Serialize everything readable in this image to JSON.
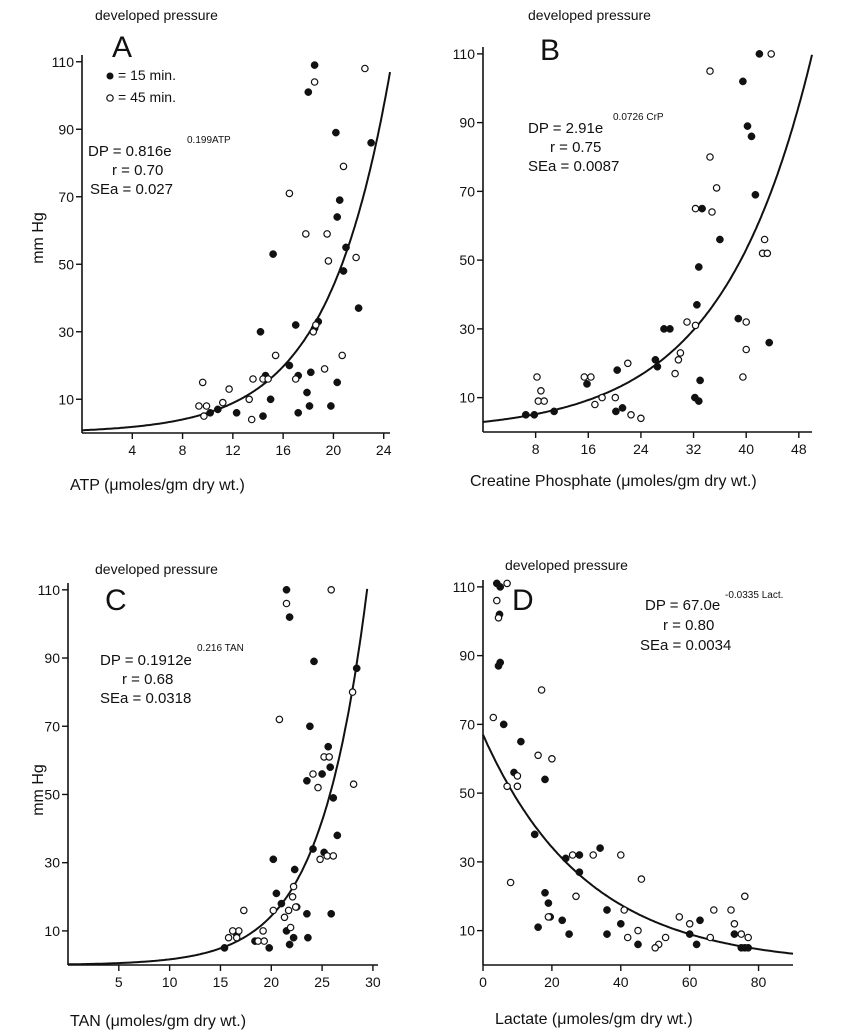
{
  "chart_data": [
    {
      "type": "scatter",
      "panel": "A",
      "title": "developed pressure",
      "xlabel": "ATP (μmoles/gm dry wt.)",
      "ylabel": "mm Hg",
      "xlim": [
        0,
        24.5
      ],
      "ylim": [
        0,
        112
      ],
      "x_ticks": [
        4,
        8,
        12,
        16,
        20,
        24
      ],
      "y_ticks": [
        10,
        30,
        50,
        70,
        90,
        110
      ],
      "legend": [
        {
          "marker": "filled",
          "label": "= 15 min."
        },
        {
          "marker": "open",
          "label": "= 45 min."
        }
      ],
      "equation": {
        "lhs": "DP = 0.816e",
        "exponent": "0.199ATP",
        "r": "r = 0.70",
        "se": "SEa = 0.027"
      },
      "fit": {
        "a": 0.816,
        "b": 0.199
      },
      "series": [
        {
          "name": "15 min.",
          "marker": "filled",
          "points": [
            [
              18.5,
              109
            ],
            [
              18,
              101
            ],
            [
              20.2,
              89
            ],
            [
              23,
              86
            ],
            [
              20.5,
              69
            ],
            [
              20.3,
              64
            ],
            [
              21,
              55
            ],
            [
              15.2,
              53
            ],
            [
              20.8,
              48
            ],
            [
              22,
              37
            ],
            [
              18.8,
              33
            ],
            [
              14.2,
              30
            ],
            [
              17,
              32
            ],
            [
              18.5,
              31
            ],
            [
              16.5,
              20
            ],
            [
              17.2,
              17
            ],
            [
              18.2,
              18
            ],
            [
              14.6,
              17
            ],
            [
              17.9,
              12
            ],
            [
              15,
              10
            ],
            [
              20.3,
              15
            ],
            [
              12.3,
              6
            ],
            [
              10.2,
              6
            ],
            [
              14.4,
              5
            ],
            [
              17.2,
              6
            ],
            [
              18.1,
              8
            ],
            [
              19.8,
              8
            ],
            [
              10.8,
              7
            ]
          ]
        },
        {
          "name": "45 min.",
          "marker": "open",
          "points": [
            [
              18.5,
              104
            ],
            [
              22.5,
              108
            ],
            [
              20.8,
              79
            ],
            [
              16.5,
              71
            ],
            [
              17.8,
              59
            ],
            [
              19.5,
              59
            ],
            [
              21.8,
              52
            ],
            [
              19.6,
              51
            ],
            [
              18.6,
              32
            ],
            [
              18.4,
              30
            ],
            [
              20.7,
              23
            ],
            [
              15.4,
              23
            ],
            [
              19.3,
              19
            ],
            [
              17,
              16
            ],
            [
              13.6,
              16
            ],
            [
              14.4,
              16
            ],
            [
              14.8,
              16
            ],
            [
              11.7,
              13
            ],
            [
              13.3,
              10
            ],
            [
              9.6,
              15
            ],
            [
              9.3,
              8
            ],
            [
              9.9,
              8
            ],
            [
              11.2,
              9
            ],
            [
              9.7,
              5
            ],
            [
              13.5,
              4
            ]
          ]
        }
      ]
    },
    {
      "type": "scatter",
      "panel": "B",
      "title": "developed pressure",
      "xlabel": "Creatine Phosphate (μmoles/gm dry wt.)",
      "ylabel": "",
      "xlim": [
        0,
        50
      ],
      "ylim": [
        0,
        112
      ],
      "x_ticks": [
        8,
        16,
        24,
        32,
        40,
        48
      ],
      "y_ticks": [
        10,
        30,
        50,
        70,
        90,
        110
      ],
      "equation": {
        "lhs": "DP = 2.91e",
        "exponent": "0.0726 CrP",
        "r": "r = 0.75",
        "se": "SEa = 0.0087"
      },
      "fit": {
        "a": 2.91,
        "b": 0.0726
      },
      "series": [
        {
          "name": "15 min.",
          "marker": "filled",
          "points": [
            [
              42,
              110
            ],
            [
              39.5,
              102
            ],
            [
              40.2,
              89
            ],
            [
              40.8,
              86
            ],
            [
              41.4,
              69
            ],
            [
              33.3,
              65
            ],
            [
              36,
              56
            ],
            [
              32.8,
              48
            ],
            [
              32.5,
              37
            ],
            [
              27.5,
              30
            ],
            [
              28.4,
              30
            ],
            [
              38.8,
              33
            ],
            [
              43.5,
              26
            ],
            [
              26.2,
              21
            ],
            [
              26.5,
              19
            ],
            [
              15.8,
              14
            ],
            [
              20.4,
              18
            ],
            [
              33,
              15
            ],
            [
              32.2,
              10
            ],
            [
              32.8,
              9
            ],
            [
              20.2,
              6
            ],
            [
              21.2,
              7
            ],
            [
              6.5,
              5
            ],
            [
              7.8,
              5
            ],
            [
              10.8,
              6
            ]
          ]
        },
        {
          "name": "45 min.",
          "marker": "open",
          "points": [
            [
              43.8,
              110
            ],
            [
              34.5,
              105
            ],
            [
              34.5,
              80
            ],
            [
              35.5,
              71
            ],
            [
              32.3,
              65
            ],
            [
              34.8,
              64
            ],
            [
              31,
              32
            ],
            [
              32.3,
              31
            ],
            [
              40,
              32
            ],
            [
              40,
              24
            ],
            [
              39.5,
              16
            ],
            [
              42.8,
              56
            ],
            [
              42.5,
              52
            ],
            [
              43.2,
              52
            ],
            [
              30,
              23
            ],
            [
              29.2,
              17
            ],
            [
              29.7,
              21
            ],
            [
              8.2,
              16
            ],
            [
              15.4,
              16
            ],
            [
              16.4,
              16
            ],
            [
              22,
              20
            ],
            [
              8.8,
              12
            ],
            [
              8.4,
              9
            ],
            [
              9.3,
              9
            ],
            [
              18.1,
              10
            ],
            [
              20.1,
              10
            ],
            [
              22.5,
              5
            ],
            [
              17,
              8
            ],
            [
              24,
              4
            ]
          ]
        }
      ]
    },
    {
      "type": "scatter",
      "panel": "C",
      "title": "developed pressure",
      "xlabel": "TAN (μmoles/gm dry wt.)",
      "ylabel": "mm Hg",
      "xlim": [
        0,
        30.5
      ],
      "ylim": [
        0,
        112
      ],
      "x_ticks": [
        5,
        10,
        15,
        20,
        25,
        30
      ],
      "y_ticks": [
        10,
        30,
        50,
        70,
        90,
        110
      ],
      "equation": {
        "lhs": "DP = 0.1912e",
        "exponent": "0.216 TAN",
        "r": "r = 0.68",
        "se": "SEa = 0.0318"
      },
      "fit": {
        "a": 0.1912,
        "b": 0.216
      },
      "series": [
        {
          "name": "15 min.",
          "marker": "filled",
          "points": [
            [
              21.5,
              110
            ],
            [
              21.8,
              102
            ],
            [
              24.2,
              89
            ],
            [
              28.4,
              87
            ],
            [
              23.8,
              70
            ],
            [
              25.6,
              64
            ],
            [
              25.8,
              58
            ],
            [
              25,
              56
            ],
            [
              23.5,
              54
            ],
            [
              26.1,
              49
            ],
            [
              26.5,
              38
            ],
            [
              25.2,
              33
            ],
            [
              24.1,
              34
            ],
            [
              20.2,
              31
            ],
            [
              22.3,
              28
            ],
            [
              20.5,
              21
            ],
            [
              21,
              18
            ],
            [
              22.5,
              17
            ],
            [
              23.5,
              15
            ],
            [
              25.9,
              15
            ],
            [
              21.5,
              10
            ],
            [
              22.2,
              8
            ],
            [
              23.6,
              8
            ],
            [
              21.8,
              6
            ],
            [
              18.4,
              7
            ],
            [
              19.8,
              5
            ],
            [
              15.4,
              5
            ],
            [
              16.6,
              9
            ]
          ]
        },
        {
          "name": "45 min.",
          "marker": "open",
          "points": [
            [
              21.5,
              106
            ],
            [
              25.9,
              110
            ],
            [
              28,
              80
            ],
            [
              20.8,
              72
            ],
            [
              28.1,
              53
            ],
            [
              25.2,
              61
            ],
            [
              25.7,
              61
            ],
            [
              24.1,
              56
            ],
            [
              24.6,
              52
            ],
            [
              24.8,
              31
            ],
            [
              25.5,
              32
            ],
            [
              26.1,
              32
            ],
            [
              22.2,
              23
            ],
            [
              20.2,
              16
            ],
            [
              21.3,
              14
            ],
            [
              21.7,
              16
            ],
            [
              22.1,
              20
            ],
            [
              21.9,
              11
            ],
            [
              22.4,
              17
            ],
            [
              17.3,
              16
            ],
            [
              16.8,
              10
            ],
            [
              16.6,
              8
            ],
            [
              19.2,
              10
            ],
            [
              18.7,
              7
            ],
            [
              19.3,
              7
            ],
            [
              15.8,
              8
            ],
            [
              16.2,
              10
            ]
          ]
        }
      ]
    },
    {
      "type": "scatter",
      "panel": "D",
      "title": "developed pressure",
      "xlabel": "Lactate (μmoles/gm dry wt.)",
      "ylabel": "",
      "xlim": [
        0,
        90
      ],
      "ylim": [
        0,
        112
      ],
      "x_ticks": [
        0,
        20,
        40,
        60,
        80
      ],
      "y_ticks": [
        10,
        30,
        50,
        70,
        90,
        110
      ],
      "equation": {
        "lhs": "DP = 67.0e",
        "exponent": "-0.0335 Lact.",
        "r": "r = 0.80",
        "se": "SEa = 0.0034"
      },
      "fit": {
        "a": 67.0,
        "b": -0.0335
      },
      "series": [
        {
          "name": "15 min.",
          "marker": "filled",
          "points": [
            [
              4,
              111
            ],
            [
              5,
              110
            ],
            [
              4.8,
              102
            ],
            [
              5,
              88
            ],
            [
              4.5,
              87
            ],
            [
              6,
              70
            ],
            [
              11,
              65
            ],
            [
              9,
              56
            ],
            [
              18,
              54
            ],
            [
              15,
              38
            ],
            [
              24,
              31
            ],
            [
              28,
              32
            ],
            [
              34,
              34
            ],
            [
              18,
              21
            ],
            [
              19,
              18
            ],
            [
              19.5,
              14
            ],
            [
              23,
              13
            ],
            [
              28,
              27
            ],
            [
              36,
              16
            ],
            [
              40,
              12
            ],
            [
              16,
              11
            ],
            [
              25,
              9
            ],
            [
              36,
              9
            ],
            [
              45,
              6
            ],
            [
              63,
              13
            ],
            [
              62,
              6
            ],
            [
              75,
              5
            ],
            [
              76,
              5
            ],
            [
              77,
              5
            ],
            [
              73,
              9
            ],
            [
              60,
              9
            ]
          ]
        },
        {
          "name": "45 min.",
          "marker": "open",
          "points": [
            [
              7,
              111
            ],
            [
              4,
              106
            ],
            [
              4.5,
              101
            ],
            [
              3,
              72
            ],
            [
              17,
              80
            ],
            [
              16,
              61
            ],
            [
              20,
              60
            ],
            [
              10,
              55
            ],
            [
              10,
              52
            ],
            [
              7,
              52
            ],
            [
              8,
              24
            ],
            [
              19,
              14
            ],
            [
              26,
              32
            ],
            [
              32,
              32
            ],
            [
              40,
              32
            ],
            [
              27,
              20
            ],
            [
              46,
              25
            ],
            [
              41,
              16
            ],
            [
              42,
              8
            ],
            [
              45,
              10
            ],
            [
              51,
              6
            ],
            [
              53,
              8
            ],
            [
              57,
              14
            ],
            [
              60,
              12
            ],
            [
              67,
              16
            ],
            [
              72,
              16
            ],
            [
              76,
              20
            ],
            [
              73,
              12
            ],
            [
              75,
              9
            ],
            [
              77,
              8
            ],
            [
              66,
              8
            ],
            [
              50,
              5
            ]
          ]
        }
      ]
    }
  ]
}
